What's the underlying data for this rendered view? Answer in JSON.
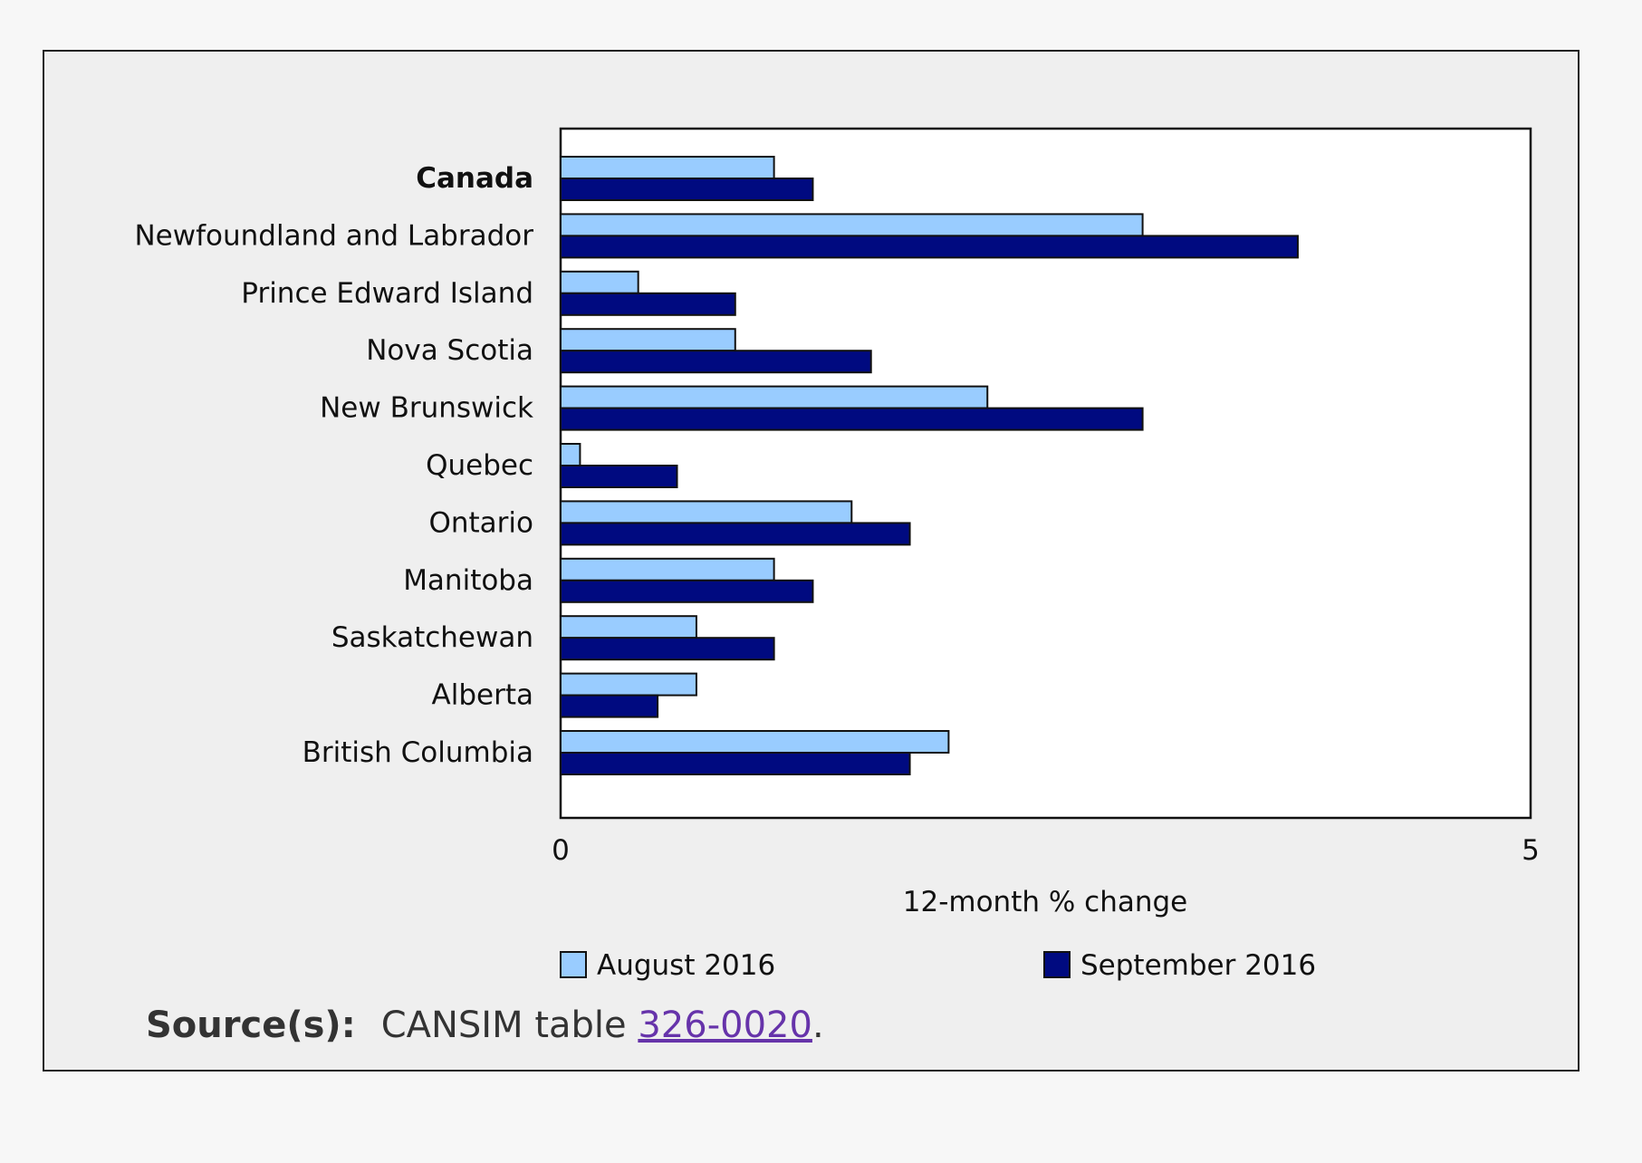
{
  "chart_data": {
    "type": "bar",
    "orientation": "horizontal",
    "categories": [
      "Canada",
      "Newfoundland and Labrador",
      "Prince Edward Island",
      "Nova Scotia",
      "New Brunswick",
      "Quebec",
      "Ontario",
      "Manitoba",
      "Saskatchewan",
      "Alberta",
      "British Columbia"
    ],
    "bold_category": "Canada",
    "series": [
      {
        "name": "August 2016",
        "color": "#99ccff",
        "values": [
          1.1,
          3.0,
          0.4,
          0.9,
          2.2,
          0.1,
          1.5,
          1.1,
          0.7,
          0.7,
          2.0
        ]
      },
      {
        "name": "September 2016",
        "color": "#000a80",
        "values": [
          1.3,
          3.8,
          0.9,
          1.6,
          3.0,
          0.6,
          1.8,
          1.3,
          1.1,
          0.5,
          1.8
        ]
      }
    ],
    "xlabel": "12-month % change",
    "xlim": [
      0,
      5
    ],
    "xticks": [
      "0",
      "5"
    ],
    "grid": false,
    "legend": "bottom"
  },
  "source": {
    "label": "Source(s):",
    "text_before": "CANSIM table",
    "link_text": "326-0020",
    "text_after": "."
  }
}
